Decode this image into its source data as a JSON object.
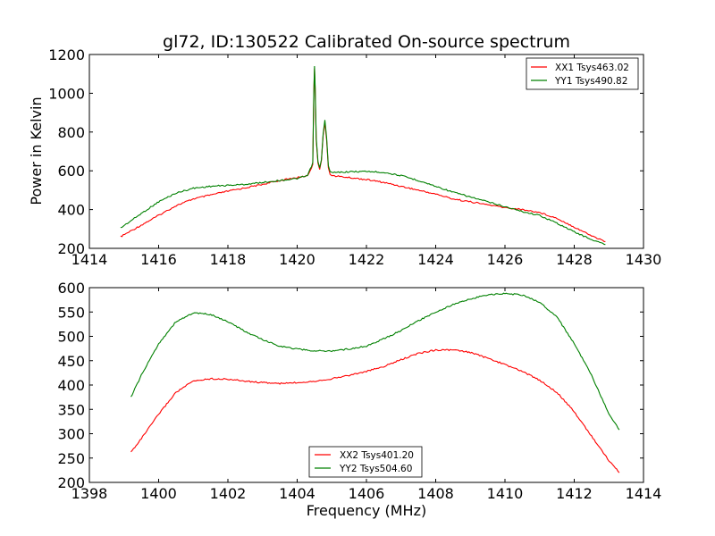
{
  "chart_data": [
    {
      "type": "line",
      "title": "gl72, ID:130522 Calibrated On-source spectrum",
      "xlabel": "",
      "ylabel": "Power in Kelvin",
      "xlim": [
        1414,
        1430
      ],
      "ylim": [
        200,
        1200
      ],
      "xticks": [
        1414,
        1416,
        1418,
        1420,
        1422,
        1424,
        1426,
        1428,
        1430
      ],
      "yticks": [
        200,
        400,
        600,
        800,
        1000,
        1200
      ],
      "legend": "top-right",
      "series": [
        {
          "name": "XX1 Tsys463.02",
          "color": "#ff0000",
          "x": [
            1414.9,
            1415.5,
            1416.0,
            1416.5,
            1417.0,
            1417.5,
            1418.0,
            1418.5,
            1419.0,
            1419.5,
            1420.0,
            1420.3,
            1420.45,
            1420.48,
            1420.5,
            1420.52,
            1420.55,
            1420.6,
            1420.65,
            1420.7,
            1420.75,
            1420.8,
            1420.85,
            1420.9,
            1420.95,
            1421.0,
            1421.5,
            1422.0,
            1422.5,
            1423.0,
            1423.5,
            1424.0,
            1424.5,
            1425.0,
            1425.5,
            1426.0,
            1426.5,
            1427.0,
            1427.5,
            1428.0,
            1428.5,
            1428.9
          ],
          "y": [
            260,
            320,
            370,
            420,
            455,
            475,
            495,
            512,
            530,
            550,
            565,
            575,
            630,
            1000,
            1130,
            1020,
            760,
            640,
            610,
            650,
            780,
            850,
            760,
            620,
            585,
            575,
            565,
            555,
            540,
            520,
            500,
            480,
            455,
            440,
            425,
            410,
            400,
            385,
            355,
            310,
            265,
            235
          ]
        },
        {
          "name": "YY1 Tsys490.82",
          "color": "#008000",
          "x": [
            1414.9,
            1415.5,
            1416.0,
            1416.5,
            1417.0,
            1417.5,
            1418.0,
            1418.5,
            1419.0,
            1419.5,
            1420.0,
            1420.3,
            1420.45,
            1420.48,
            1420.5,
            1420.52,
            1420.55,
            1420.6,
            1420.65,
            1420.7,
            1420.75,
            1420.8,
            1420.85,
            1420.9,
            1420.95,
            1421.0,
            1421.5,
            1422.0,
            1422.5,
            1423.0,
            1423.5,
            1424.0,
            1424.5,
            1425.0,
            1425.5,
            1426.0,
            1426.5,
            1427.0,
            1427.5,
            1428.0,
            1428.5,
            1428.9
          ],
          "y": [
            305,
            380,
            440,
            485,
            510,
            520,
            525,
            530,
            540,
            550,
            560,
            575,
            640,
            1000,
            1140,
            1030,
            770,
            645,
            615,
            660,
            790,
            860,
            770,
            630,
            595,
            590,
            595,
            597,
            592,
            575,
            550,
            520,
            490,
            465,
            440,
            415,
            390,
            370,
            330,
            285,
            245,
            220
          ]
        }
      ]
    },
    {
      "type": "line",
      "title": "",
      "xlabel": "Frequency (MHz)",
      "ylabel": "",
      "xlim": [
        1398,
        1414
      ],
      "ylim": [
        200,
        600
      ],
      "xticks": [
        1398,
        1400,
        1402,
        1404,
        1406,
        1408,
        1410,
        1412,
        1414
      ],
      "yticks": [
        200,
        250,
        300,
        350,
        400,
        450,
        500,
        550,
        600
      ],
      "legend": "bottom-center",
      "series": [
        {
          "name": "XX2 Tsys401.20",
          "color": "#ff0000",
          "x": [
            1399.2,
            1399.5,
            1400.0,
            1400.5,
            1401.0,
            1401.5,
            1402.0,
            1402.5,
            1403.0,
            1403.5,
            1404.0,
            1404.5,
            1405.0,
            1405.5,
            1406.0,
            1406.5,
            1407.0,
            1407.5,
            1408.0,
            1408.5,
            1409.0,
            1409.5,
            1410.0,
            1410.5,
            1411.0,
            1411.5,
            1412.0,
            1412.5,
            1413.0,
            1413.3
          ],
          "y": [
            262,
            290,
            340,
            385,
            408,
            413,
            412,
            408,
            405,
            403,
            405,
            408,
            413,
            420,
            428,
            438,
            452,
            465,
            472,
            472,
            467,
            455,
            442,
            428,
            410,
            385,
            345,
            295,
            245,
            220
          ]
        },
        {
          "name": "YY2 Tsys504.60",
          "color": "#008000",
          "x": [
            1399.2,
            1399.5,
            1400.0,
            1400.5,
            1401.0,
            1401.5,
            1402.0,
            1402.5,
            1403.0,
            1403.5,
            1404.0,
            1404.5,
            1405.0,
            1405.5,
            1406.0,
            1406.5,
            1407.0,
            1407.5,
            1408.0,
            1408.5,
            1409.0,
            1409.5,
            1410.0,
            1410.5,
            1411.0,
            1411.5,
            1412.0,
            1412.5,
            1413.0,
            1413.3
          ],
          "y": [
            375,
            420,
            485,
            530,
            548,
            545,
            530,
            510,
            493,
            480,
            474,
            470,
            470,
            474,
            480,
            495,
            512,
            532,
            550,
            565,
            577,
            585,
            588,
            585,
            570,
            540,
            485,
            420,
            340,
            308
          ]
        }
      ]
    }
  ]
}
